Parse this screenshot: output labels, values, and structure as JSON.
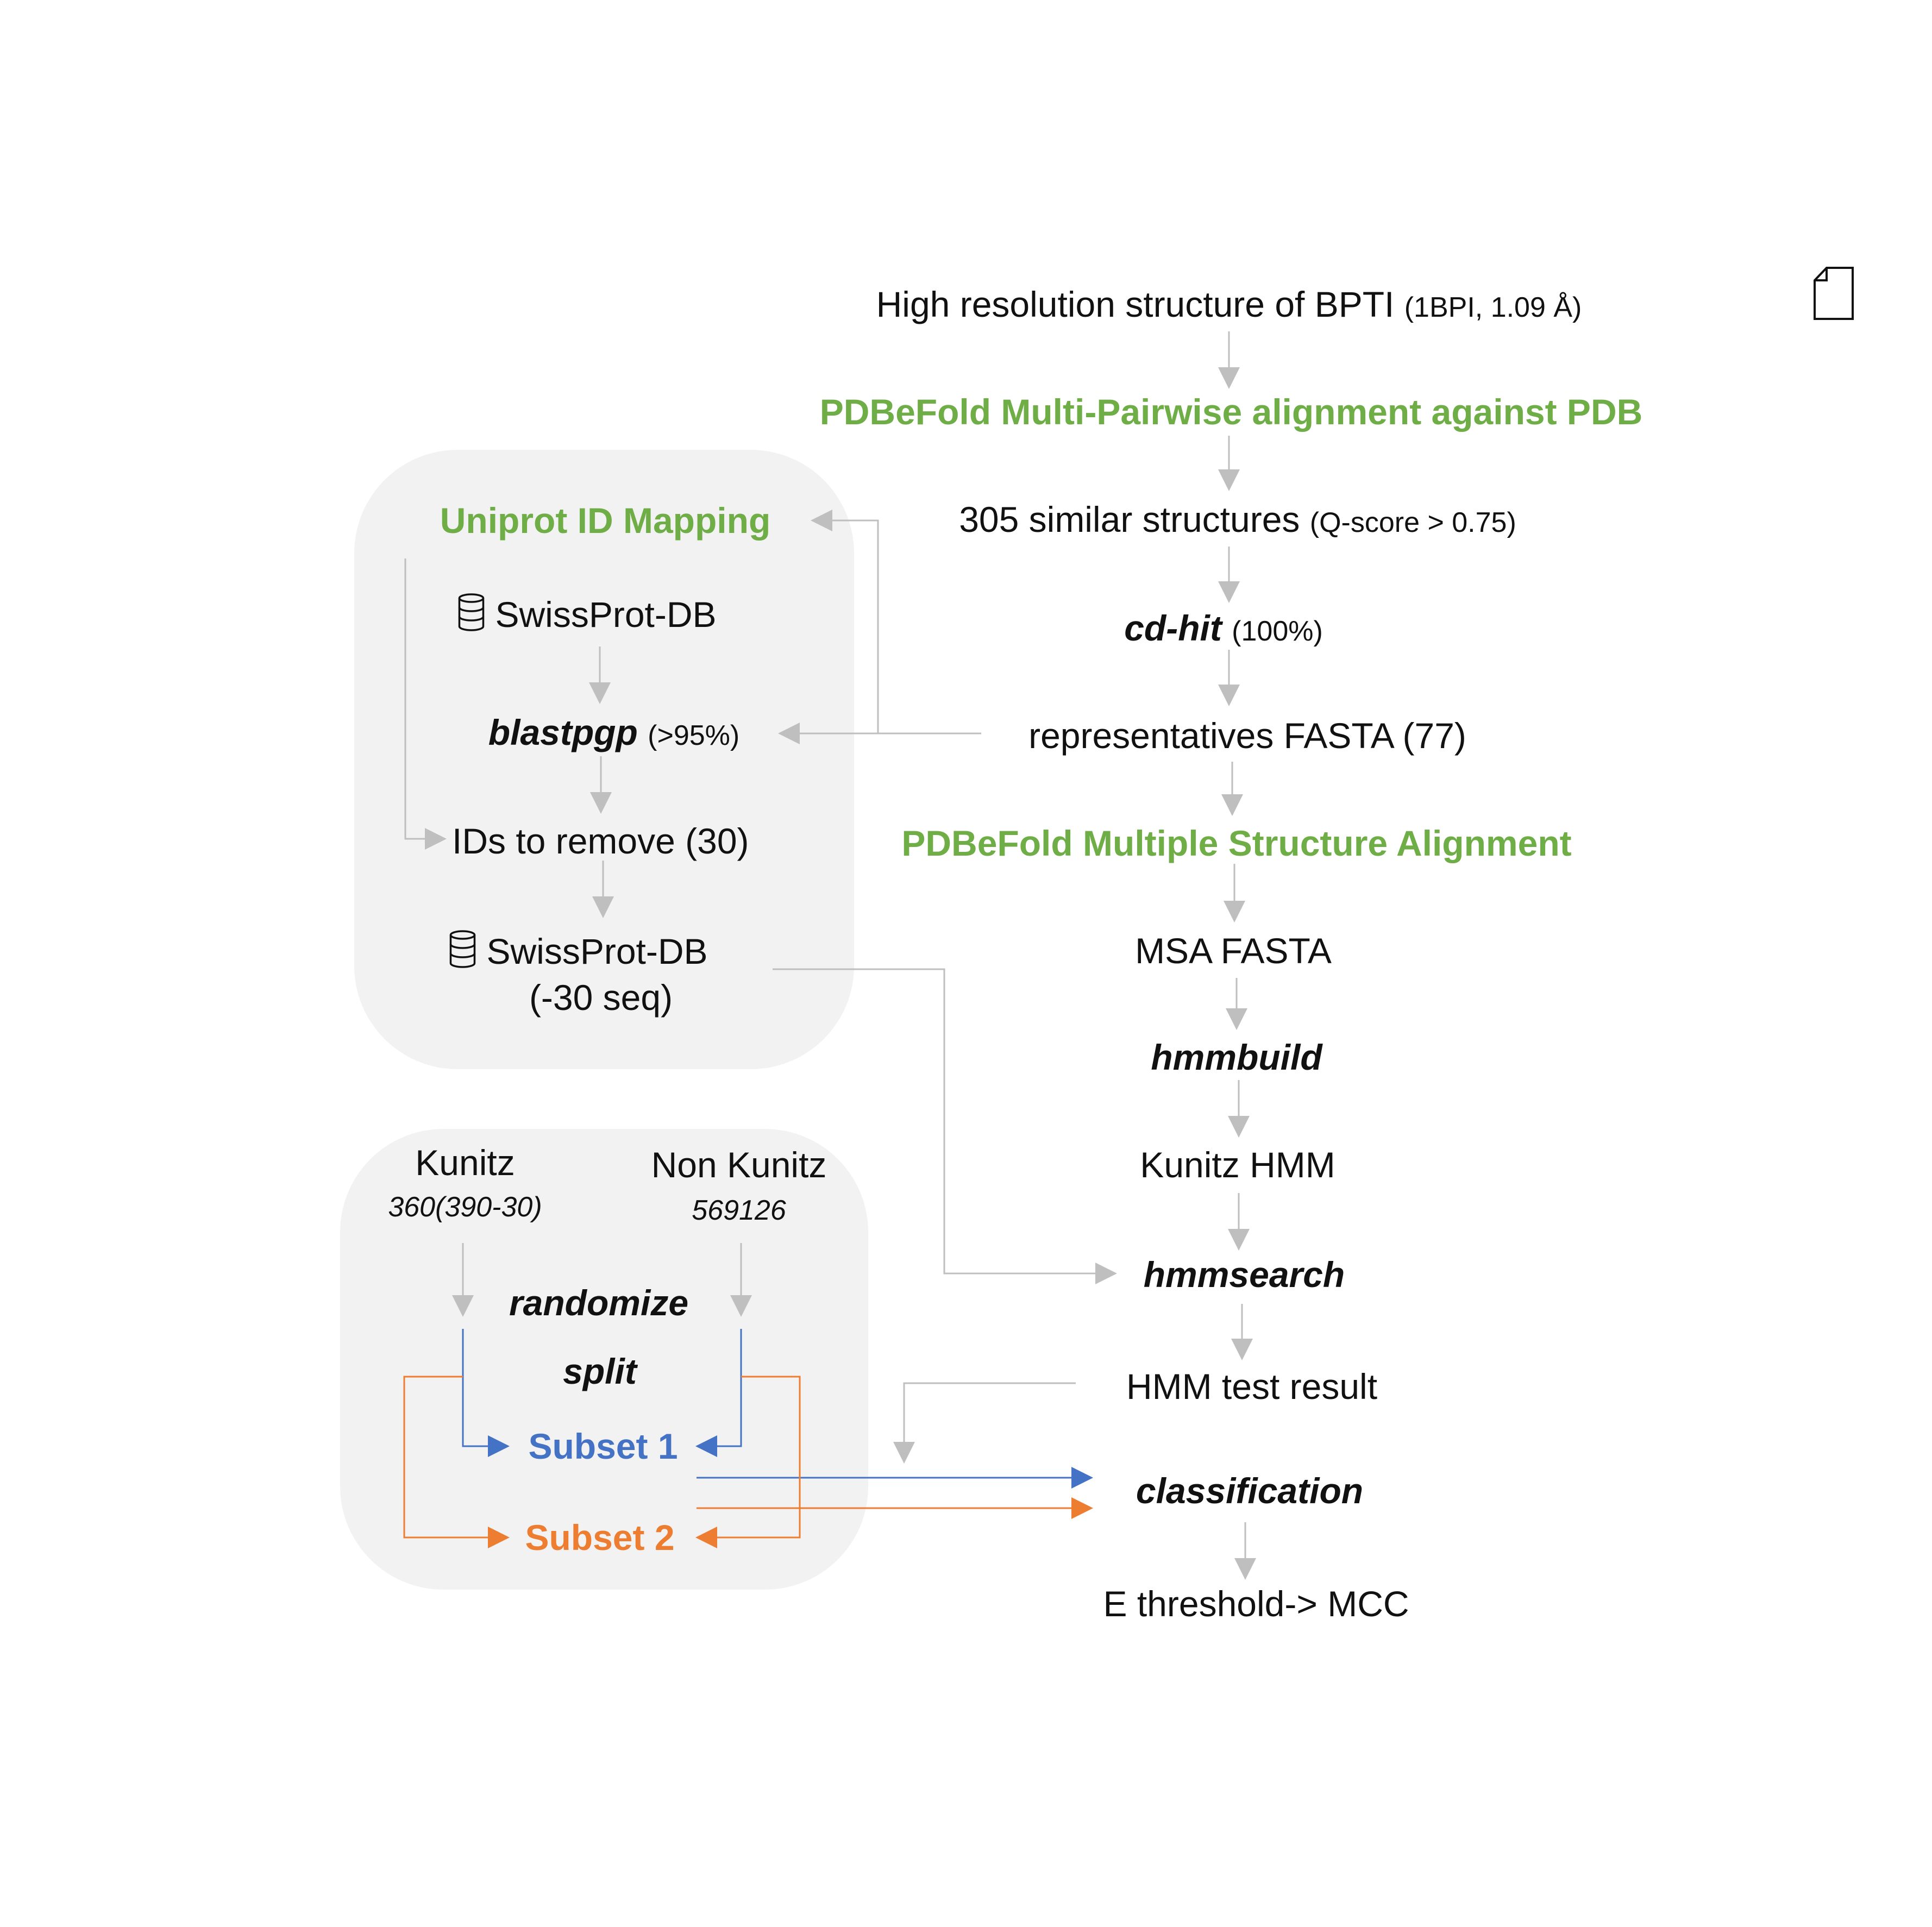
{
  "pipeline": {
    "start": {
      "text": "High resolution structure of BPTI",
      "detail": "(1BPI, 1.09 Å)"
    },
    "pairwise": {
      "text": "PDBeFold Multi-Pairwise alignment against PDB"
    },
    "similar": {
      "text": "305 similar structures",
      "detail": "(Q-score > 0.75)"
    },
    "cdhit": {
      "tool": "cd-hit",
      "detail": "(100%)"
    },
    "representatives": {
      "text": "representatives FASTA",
      "detail": "(77)"
    },
    "msa_align": {
      "text": "PDBeFold Multiple Structure Alignment"
    },
    "msa_fasta": {
      "text": "MSA FASTA"
    },
    "hmmbuild": {
      "tool": "hmmbuild"
    },
    "kunitz_hmm": {
      "text": "Kunitz HMM"
    },
    "hmmsearch": {
      "tool": "hmmsearch"
    },
    "test_result": {
      "text": "HMM test result"
    },
    "classification": {
      "tool": "classification"
    },
    "threshold": {
      "text": "E threshold-> MCC"
    }
  },
  "uniprot_panel": {
    "title": "Uniprot ID Mapping",
    "swissprot_db": "SwissProt-DB",
    "blastpgp": {
      "tool": "blastpgp",
      "detail": "(>95%)"
    },
    "ids_remove": {
      "text": "IDs to remove",
      "detail": "(30)"
    },
    "swissprot_filtered": {
      "text": "SwissProt-DB",
      "detail": "(-30 seq)"
    }
  },
  "split_panel": {
    "kunitz": {
      "label": "Kunitz",
      "count": "360(390-30)"
    },
    "non_kunitz": {
      "label": "Non Kunitz",
      "count": "569126"
    },
    "randomize": "randomize",
    "split": "split",
    "subset1": "Subset 1",
    "subset2": "Subset 2"
  },
  "icons": {
    "database": "database-icon",
    "document": "document-icon"
  },
  "colors": {
    "green": "#6fad47",
    "blue": "#4472c4",
    "orange": "#ed7d31",
    "arrow_gray": "#bfbfbf",
    "panel": "#f2f2f2"
  }
}
